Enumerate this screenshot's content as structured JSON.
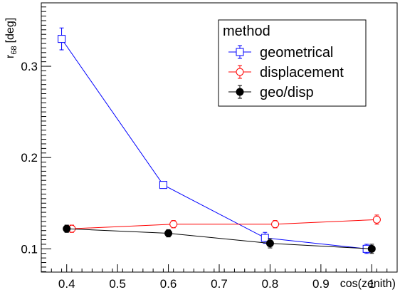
{
  "chart_data": {
    "type": "line",
    "title": "",
    "xlabel": "cos(zenith)",
    "ylabel_main": "r",
    "ylabel_sub": "68",
    "ylabel_unit": "[deg]",
    "xlim": [
      0.35,
      1.05
    ],
    "ylim": [
      0.0745,
      0.3695
    ],
    "x_ticks": [
      "0.4",
      "0.5",
      "0.6",
      "0.7",
      "0.8",
      "0.9",
      "1"
    ],
    "y_ticks": [
      "0.1",
      "0.2",
      "0.3"
    ],
    "grid": false,
    "legend": {
      "title": "method",
      "placement": "top-right"
    },
    "series": [
      {
        "name": "geometrical",
        "color": "#0000ff",
        "marker": "open-square",
        "x": [
          0.39,
          0.59,
          0.79,
          0.99
        ],
        "y": [
          0.33,
          0.17,
          0.112,
          0.1
        ],
        "err": [
          0.012,
          0.003,
          0.006,
          0.005
        ]
      },
      {
        "name": "displacement",
        "color": "#ff0000",
        "marker": "open-circle",
        "x": [
          0.41,
          0.61,
          0.81,
          1.01
        ],
        "y": [
          0.122,
          0.127,
          0.127,
          0.132
        ],
        "err": [
          0.004,
          0.004,
          0.004,
          0.005
        ]
      },
      {
        "name": "geo/disp",
        "color": "#000000",
        "marker": "filled-circle",
        "x": [
          0.4,
          0.6,
          0.8,
          1.0
        ],
        "y": [
          0.122,
          0.117,
          0.106,
          0.1
        ],
        "err": [
          0.004,
          0.004,
          0.005,
          0.005
        ]
      }
    ]
  }
}
